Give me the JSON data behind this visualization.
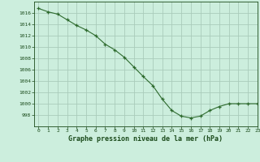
{
  "x": [
    0,
    1,
    2,
    3,
    4,
    5,
    6,
    7,
    8,
    9,
    10,
    11,
    12,
    13,
    14,
    15,
    16,
    17,
    18,
    19,
    20,
    21,
    22,
    23
  ],
  "y": [
    1016.8,
    1016.2,
    1015.8,
    1014.8,
    1013.8,
    1013.0,
    1012.0,
    1010.5,
    1009.5,
    1008.2,
    1006.5,
    1004.8,
    1003.2,
    1000.8,
    998.8,
    997.8,
    997.5,
    997.8,
    998.8,
    999.5,
    1000.0,
    1000.0,
    1000.0,
    1000.0
  ],
  "line_color": "#2d6a2d",
  "marker_color": "#2d6a2d",
  "bg_color": "#cceedd",
  "grid_color": "#aaccbb",
  "xlabel": "Graphe pression niveau de la mer (hPa)",
  "xlabel_color": "#1a4a1a",
  "tick_color": "#1a4a1a",
  "ylim": [
    996,
    1018
  ],
  "xlim": [
    -0.5,
    23
  ],
  "yticks": [
    998,
    1000,
    1002,
    1004,
    1006,
    1008,
    1010,
    1012,
    1014,
    1016
  ],
  "xticks": [
    0,
    1,
    2,
    3,
    4,
    5,
    6,
    7,
    8,
    9,
    10,
    11,
    12,
    13,
    14,
    15,
    16,
    17,
    18,
    19,
    20,
    21,
    22,
    23
  ]
}
